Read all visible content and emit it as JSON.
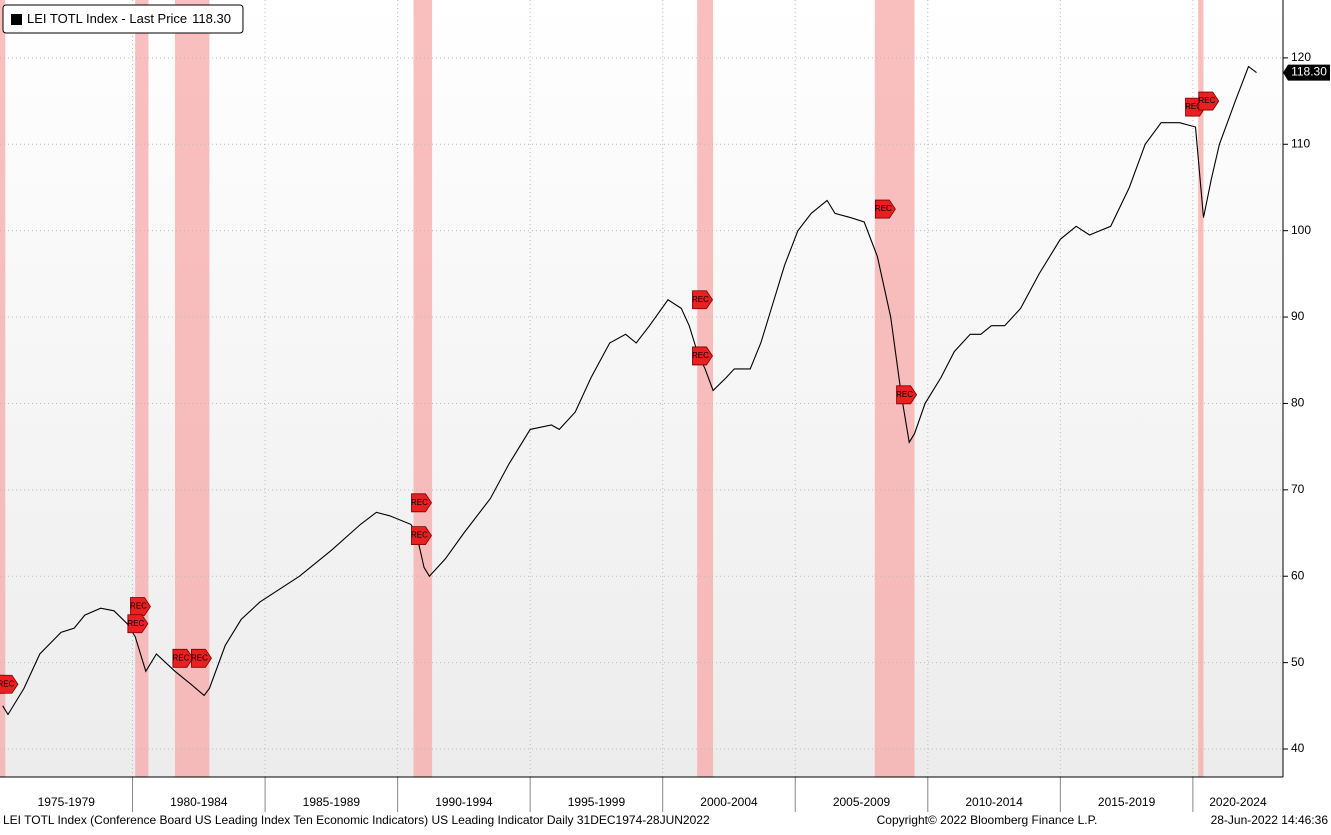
{
  "chart_data": {
    "type": "line",
    "series": [
      {
        "name": "LEI TOTL Index - Last Price",
        "color": "#000000",
        "x": [
          1975.1,
          1975.3,
          1975.9,
          1976.5,
          1977.3,
          1977.8,
          1978.2,
          1978.8,
          1979.3,
          1979.8,
          1980.1,
          1980.5,
          1980.9,
          1981.6,
          1982.2,
          1982.7,
          1982.9,
          1983.5,
          1984.1,
          1984.8,
          1986.3,
          1987.5,
          1988.6,
          1989.2,
          1989.7,
          1990.5,
          1990.7,
          1991.0,
          1991.2,
          1991.8,
          1992.5,
          1993.5,
          1994.2,
          1995.0,
          1995.8,
          1996.1,
          1996.7,
          1997.3,
          1998.0,
          1998.6,
          1999.0,
          1999.5,
          2000.2,
          2000.7,
          2001.0,
          2001.3,
          2001.6,
          2001.9,
          2002.4,
          2002.7,
          2003.3,
          2003.7,
          2004.1,
          2004.6,
          2005.1,
          2005.6,
          2006.2,
          2006.5,
          2007.1,
          2007.6,
          2008.1,
          2008.6,
          2009.0,
          2009.3,
          2009.5,
          2009.9,
          2010.5,
          2011.0,
          2011.6,
          2012.0,
          2012.4,
          2012.9,
          2013.5,
          2014.2,
          2015.0,
          2015.6,
          2016.1,
          2016.9,
          2017.6,
          2018.2,
          2018.8,
          2019.5,
          2020.1,
          2020.4,
          2020.7,
          2021.0,
          2021.6,
          2022.1,
          2022.4
        ],
        "values": [
          45,
          44,
          47,
          51,
          53.5,
          54,
          55.5,
          56.3,
          56,
          54.5,
          53,
          49,
          51,
          49,
          47.5,
          46.2,
          47,
          52,
          55,
          57,
          60,
          63,
          66,
          67.4,
          67,
          66,
          65,
          61,
          60,
          62,
          65,
          69,
          73,
          77,
          77.5,
          77,
          79,
          83,
          87,
          88,
          87,
          89,
          92,
          91,
          89,
          86,
          84,
          81.5,
          83,
          84,
          84,
          87,
          91,
          96,
          100,
          102,
          103.5,
          102,
          101.5,
          101,
          97,
          90,
          81,
          75.5,
          76.5,
          80,
          83,
          86,
          88,
          88,
          89,
          89,
          91,
          95,
          99,
          100.5,
          99.5,
          100.5,
          105,
          110,
          112.5,
          112.5,
          112,
          101.5,
          106,
          110,
          115,
          119,
          118.3
        ]
      }
    ],
    "last_price": {
      "value": 118.3,
      "label": "118.30"
    },
    "recessions": [
      [
        1975.0,
        1975.2
      ],
      [
        1980.1,
        1980.6
      ],
      [
        1981.6,
        1982.9
      ],
      [
        1990.6,
        1991.3
      ],
      [
        2001.3,
        2001.9
      ],
      [
        2008.0,
        2009.5
      ],
      [
        2020.2,
        2020.4
      ]
    ],
    "recession_color": "#f7a8a8",
    "rec_markers": [
      {
        "x": 1975.0,
        "y": 47.5,
        "label": "REC"
      },
      {
        "x": 1975.3,
        "y": 47.5,
        "label": "REC"
      },
      {
        "x": 1980.3,
        "y": 56.5,
        "label": "REC"
      },
      {
        "x": 1980.2,
        "y": 54.5,
        "label": "REC"
      },
      {
        "x": 1981.9,
        "y": 50.5,
        "label": "REC"
      },
      {
        "x": 1982.6,
        "y": 50.5,
        "label": "REC"
      },
      {
        "x": 1990.9,
        "y": 68.5,
        "label": "REC"
      },
      {
        "x": 1990.9,
        "y": 64.7,
        "label": "REC"
      },
      {
        "x": 2001.5,
        "y": 92,
        "label": "REC"
      },
      {
        "x": 2001.5,
        "y": 85.5,
        "label": "REC"
      },
      {
        "x": 2008.4,
        "y": 102.5,
        "label": "REC"
      },
      {
        "x": 2009.2,
        "y": 81,
        "label": "REC"
      },
      {
        "x": 2020.1,
        "y": 114.3,
        "label": "REC"
      },
      {
        "x": 2020.6,
        "y": 115,
        "label": "REC"
      }
    ],
    "xlim": [
      1975.0,
      2023.4
    ],
    "xticks": [
      {
        "value": 1975,
        "label": "1975-1979"
      },
      {
        "value": 1980,
        "label": "1980-1984"
      },
      {
        "value": 1985,
        "label": "1985-1989"
      },
      {
        "value": 1990,
        "label": "1990-1994"
      },
      {
        "value": 1995,
        "label": "1995-1999"
      },
      {
        "value": 2000,
        "label": "2000-2004"
      },
      {
        "value": 2005,
        "label": "2005-2009"
      },
      {
        "value": 2010,
        "label": "2010-2014"
      },
      {
        "value": 2015,
        "label": "2015-2019"
      },
      {
        "value": 2020,
        "label": "2020-2024"
      }
    ],
    "ylim": [
      36.76,
      126.7
    ],
    "yticks": [
      40,
      50,
      60,
      70,
      80,
      90,
      100,
      110,
      120
    ],
    "grid": true,
    "footer_left": "LEI TOTL Index (Conference Board US Leading Index Ten Economic Indicators) US Leading Indicator  Daily 31DEC1974-28JUN2022",
    "footer_center": "Copyright© 2022 Bloomberg Finance L.P.",
    "footer_right": "28-Jun-2022 14:46:36"
  }
}
